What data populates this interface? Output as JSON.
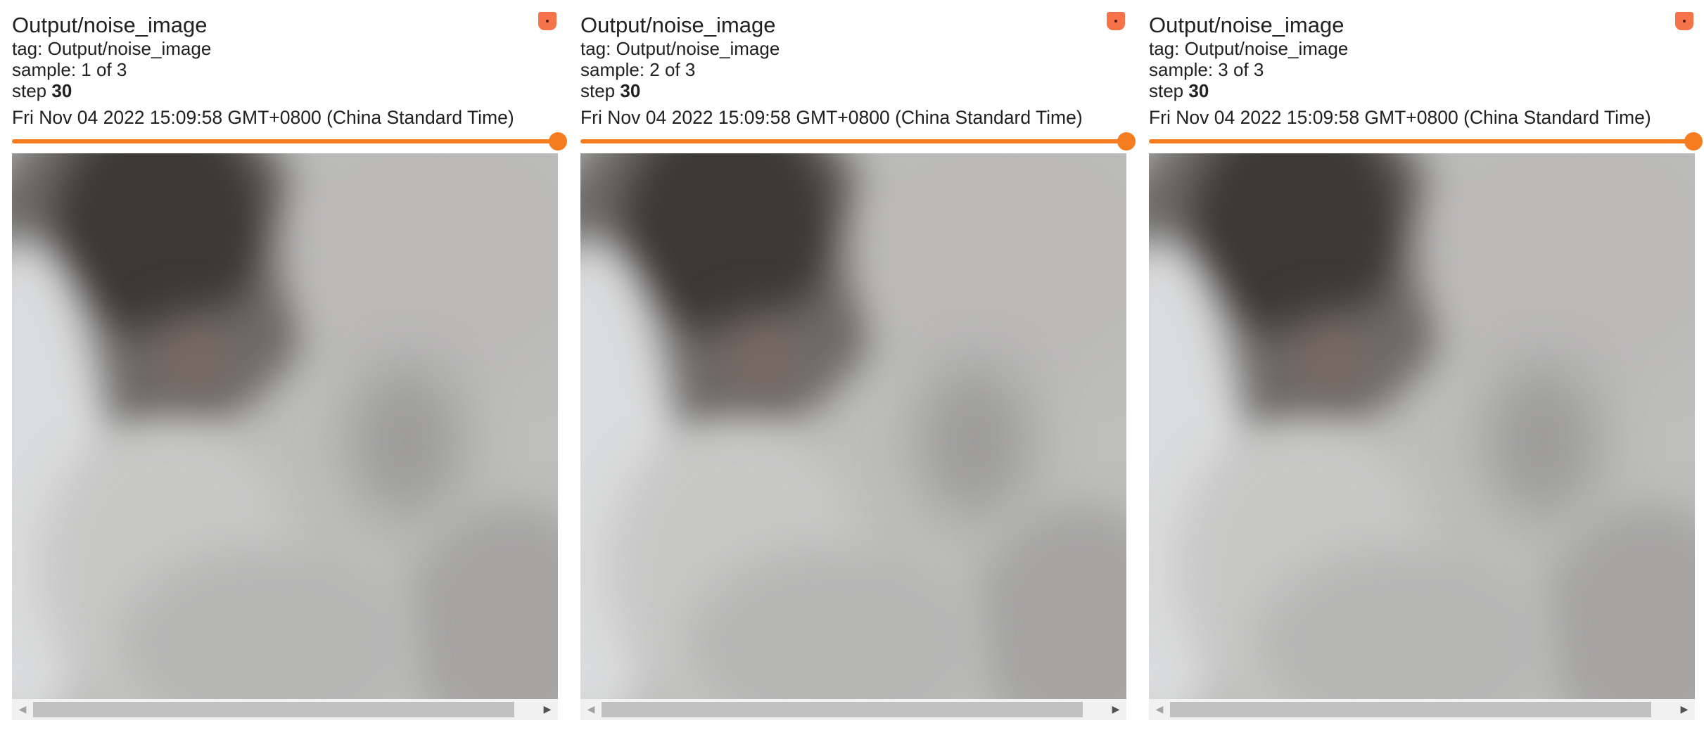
{
  "colors": {
    "accent": "#f57c1f",
    "expand_button": "#f6734a",
    "text": "#212121"
  },
  "cards": [
    {
      "title": "Output/noise_image",
      "tag_line": "tag: Output/noise_image",
      "sample_line": "sample: 1 of 3",
      "step_label": "step",
      "step_value": "30",
      "timestamp": "Fri Nov 04 2022 15:09:58 GMT+0800 (China Standard Time)",
      "expand_icon": "fullscreen-icon",
      "slider_value_fraction": 1.0
    },
    {
      "title": "Output/noise_image",
      "tag_line": "tag: Output/noise_image",
      "sample_line": "sample: 2 of 3",
      "step_label": "step",
      "step_value": "30",
      "timestamp": "Fri Nov 04 2022 15:09:58 GMT+0800 (China Standard Time)",
      "expand_icon": "fullscreen-icon",
      "slider_value_fraction": 1.0
    },
    {
      "title": "Output/noise_image",
      "tag_line": "tag: Output/noise_image",
      "sample_line": "sample: 3 of 3",
      "step_label": "step",
      "step_value": "30",
      "timestamp": "Fri Nov 04 2022 15:09:58 GMT+0800 (China Standard Time)",
      "expand_icon": "fullscreen-icon",
      "slider_value_fraction": 1.0
    }
  ],
  "scrollbar": {
    "left_arrow_glyph": "◀",
    "right_arrow_glyph": "▶"
  }
}
